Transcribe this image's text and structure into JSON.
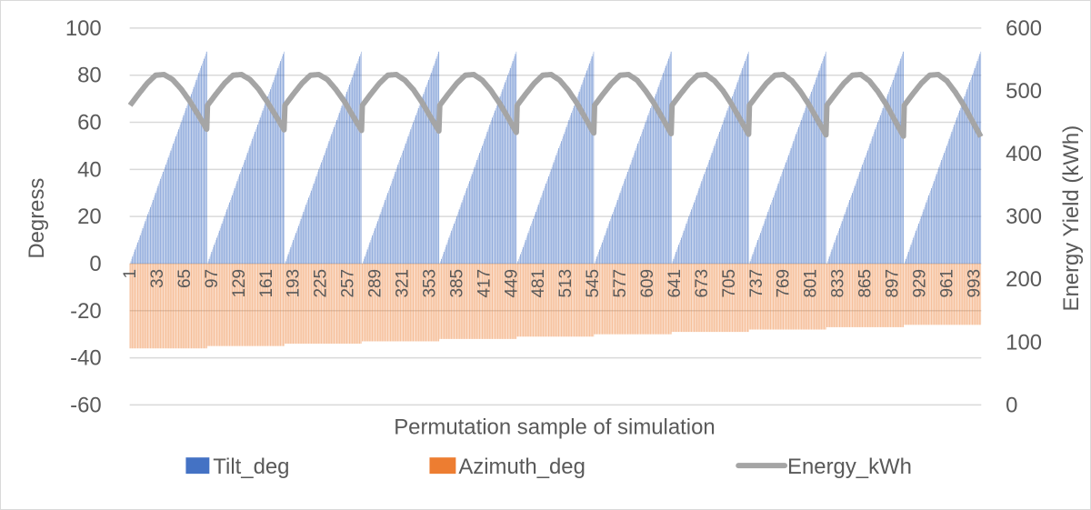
{
  "chart_data": {
    "type": "bar+line",
    "xlabel": "Permutation sample of simulation",
    "ylabel_left": "Degress",
    "ylabel_right": "Energy Yield (kWh)",
    "x_range": [
      1,
      1001
    ],
    "x_tick_labels": [
      "1",
      "33",
      "65",
      "97",
      "129",
      "161",
      "193",
      "225",
      "257",
      "289",
      "321",
      "353",
      "385",
      "417",
      "449",
      "481",
      "513",
      "545",
      "577",
      "609",
      "641",
      "673",
      "705",
      "737",
      "769",
      "801",
      "833",
      "865",
      "897",
      "929",
      "961",
      "993"
    ],
    "ylim_left": [
      -60,
      100
    ],
    "yticks_left": [
      "100",
      "80",
      "60",
      "40",
      "20",
      "0",
      "-20",
      "-40",
      "-60"
    ],
    "ylim_right": [
      0,
      600
    ],
    "yticks_right": [
      "600",
      "500",
      "400",
      "300",
      "200",
      "100",
      "0"
    ],
    "grid": true,
    "legend_position": "bottom",
    "tilt_values_per_cycle": "0 to 90 step 1",
    "tilt_range_deg": [
      0,
      90
    ],
    "cycles": 11,
    "azimuth_deg_per_cycle": [
      -36,
      -35,
      -34,
      -33,
      -32,
      -31,
      -30,
      -29,
      -28,
      -27,
      -26
    ],
    "energy_profile_tilts_deg": [
      0,
      10,
      20,
      30,
      40,
      50,
      60,
      70,
      80,
      90
    ],
    "energy_kwh_per_cycle": [
      [
        477,
        495,
        512,
        525,
        526,
        518,
        503,
        484,
        462,
        439
      ],
      [
        477,
        495,
        512,
        525,
        526,
        518,
        503,
        483,
        461,
        438
      ],
      [
        477,
        495,
        512,
        525,
        526,
        518,
        502,
        483,
        460,
        437
      ],
      [
        477,
        495,
        512,
        525,
        526,
        517,
        502,
        482,
        459,
        436
      ],
      [
        477,
        495,
        512,
        525,
        526,
        517,
        501,
        481,
        458,
        434
      ],
      [
        477,
        495,
        512,
        525,
        526,
        517,
        501,
        481,
        457,
        433
      ],
      [
        477,
        495,
        512,
        525,
        526,
        517,
        500,
        480,
        456,
        432
      ],
      [
        477,
        495,
        512,
        525,
        526,
        516,
        500,
        479,
        455,
        431
      ],
      [
        477,
        495,
        512,
        525,
        526,
        516,
        499,
        478,
        454,
        430
      ],
      [
        477,
        495,
        512,
        525,
        526,
        516,
        499,
        478,
        453,
        428
      ],
      [
        477,
        495,
        512,
        525,
        526,
        516,
        498,
        477,
        452,
        427
      ]
    ],
    "series": [
      {
        "name": "Tilt_deg",
        "axis": "left",
        "kind": "bar",
        "color": "#4472C4"
      },
      {
        "name": "Azimuth_deg",
        "axis": "left",
        "kind": "bar",
        "color": "#ED7D31"
      },
      {
        "name": "Energy_kWh",
        "axis": "right",
        "kind": "line",
        "color": "#A5A5A5"
      }
    ]
  }
}
